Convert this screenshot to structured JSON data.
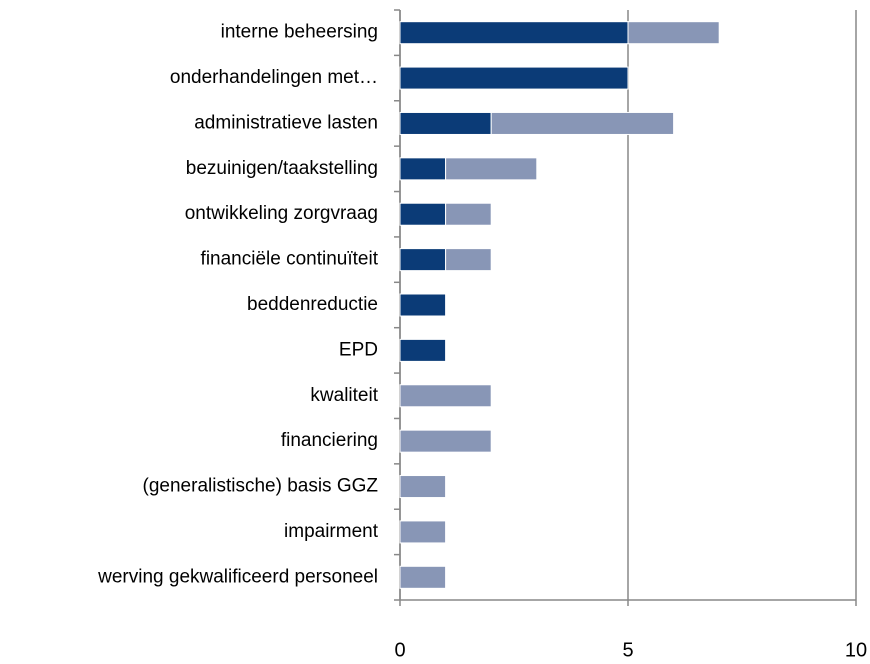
{
  "chart_data": {
    "type": "bar",
    "orientation": "horizontal",
    "stacked": true,
    "categories": [
      "interne beheersing",
      "onderhandelingen met…",
      "administratieve lasten",
      "bezuinigen/taakstelling",
      "ontwikkeling zorgvraag",
      "financiële continuïteit",
      "beddenreductie",
      "EPD",
      "kwaliteit",
      "financiering",
      "(generalistische) basis GGZ",
      "impairment",
      "werving gekwalificeerd personeel"
    ],
    "series": [
      {
        "color": "#0b3b77",
        "values": [
          5,
          5,
          2,
          1,
          1,
          1,
          1,
          1,
          0,
          0,
          0,
          0,
          0
        ]
      },
      {
        "color": "#8896b6",
        "values": [
          2,
          0,
          4,
          2,
          1,
          1,
          0,
          0,
          2,
          2,
          1,
          1,
          1
        ]
      }
    ],
    "xlim": [
      0,
      10
    ],
    "xticks": [
      0,
      5,
      10
    ],
    "grid": true
  }
}
